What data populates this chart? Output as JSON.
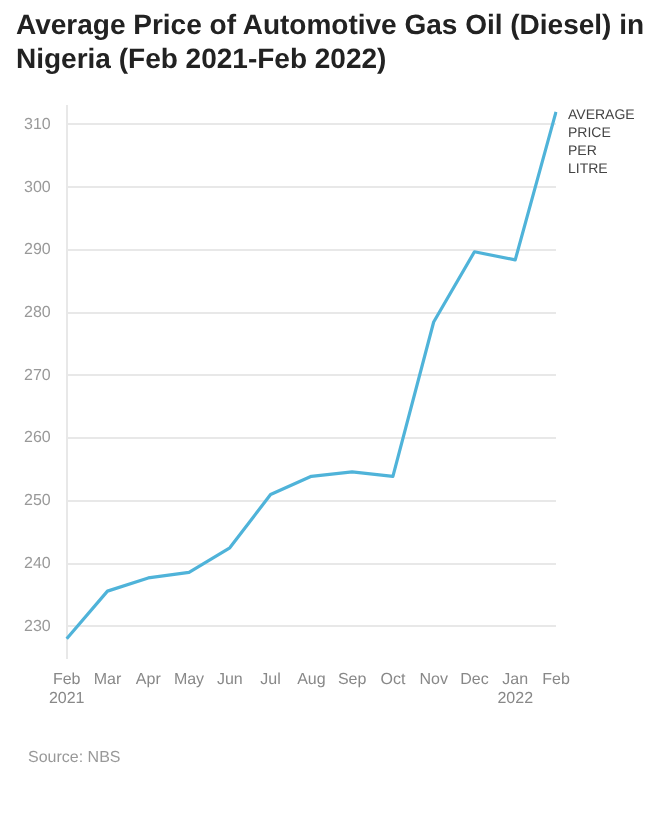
{
  "chart_data": {
    "type": "line",
    "title": "Average Price of Automotive Gas Oil (Diesel) in Nigeria (Feb 2021-Feb 2022)",
    "categories": [
      "Feb 2021",
      "Mar",
      "Apr",
      "May",
      "Jun",
      "Jul",
      "Aug",
      "Sep",
      "Oct",
      "Nov",
      "Dec",
      "Jan 2022",
      "Feb"
    ],
    "series": [
      {
        "name": "AVERAGE PRICE PER LITRE",
        "color": "#4fb3d9",
        "values": [
          228,
          235.6,
          237.7,
          238.6,
          242.5,
          251,
          253.9,
          254.6,
          253.9,
          278.5,
          289.7,
          288.4,
          312
        ]
      }
    ],
    "ylim": [
      225,
      313
    ],
    "yticks": [
      230,
      240,
      250,
      260,
      270,
      280,
      290,
      300,
      310
    ],
    "grid": "y",
    "legend": false,
    "marker": "none",
    "line_style": "solid",
    "annotations": [
      "Source: NBS"
    ]
  }
}
